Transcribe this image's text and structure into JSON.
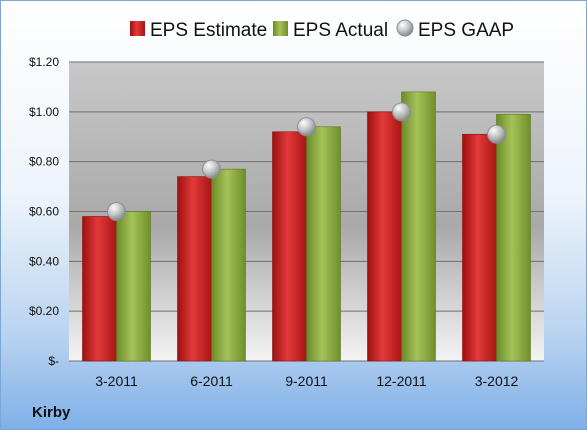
{
  "company": "Kirby",
  "chart_data": {
    "type": "bar",
    "categories": [
      "3-2011",
      "6-2011",
      "9-2011",
      "12-2011",
      "3-2012"
    ],
    "series": [
      {
        "name": "EPS Estimate",
        "kind": "bar",
        "color": "#d42121",
        "values": [
          0.58,
          0.74,
          0.92,
          1.0,
          0.91
        ]
      },
      {
        "name": "EPS Actual",
        "kind": "bar",
        "color": "#8aaa3c",
        "values": [
          0.6,
          0.77,
          0.94,
          1.08,
          0.99
        ]
      },
      {
        "name": "EPS GAAP",
        "kind": "marker",
        "color": "#b0b4b8",
        "values": [
          0.6,
          0.77,
          0.94,
          1.0,
          0.91
        ]
      }
    ],
    "ylim": [
      0,
      1.2
    ],
    "yticks": [
      0,
      0.2,
      0.4,
      0.6,
      0.8,
      1.0,
      1.2
    ],
    "ytick_labels": [
      "$-",
      "$0.20",
      "$0.40",
      "$0.60",
      "$0.80",
      "$1.00",
      "$1.20"
    ],
    "grid": true,
    "legend": "top"
  }
}
